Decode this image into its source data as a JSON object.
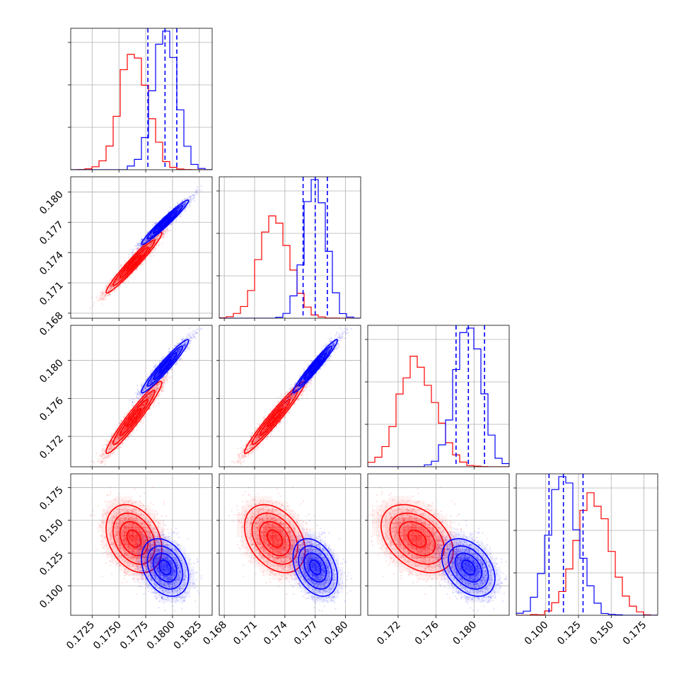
{
  "chart_data": {
    "type": "corner",
    "grid": true,
    "colors": {
      "sample_a": "#ff0000",
      "sample_b": "#0000ff",
      "quantiles": "#0000ff"
    },
    "parameters": [
      {
        "range": [
          0.1705,
          0.1837
        ],
        "ticks": [
          0.1725,
          0.175,
          0.1775,
          0.18,
          0.1825
        ],
        "tick_labels": [
          "0.1725",
          "0.1750",
          "0.1775",
          "0.1800",
          "0.1825"
        ]
      },
      {
        "range": [
          0.1675,
          0.1815
        ],
        "ticks": [
          0.168,
          0.171,
          0.174,
          0.177,
          0.18
        ],
        "tick_labels": [
          "0.168",
          "0.171",
          "0.174",
          "0.177",
          "0.180"
        ]
      },
      {
        "range": [
          0.1688,
          0.1837
        ],
        "ticks": [
          0.172,
          0.176,
          0.18
        ],
        "tick_labels": [
          "0.172",
          "0.176",
          "0.180"
        ]
      },
      {
        "range": [
          0.0775,
          0.1855
        ],
        "ticks": [
          0.1,
          0.125,
          0.15,
          0.175
        ],
        "tick_labels": [
          "0.100",
          "0.125",
          "0.150",
          "0.175"
        ]
      }
    ],
    "marginal_quantiles": [
      [
        0.1777,
        0.1793,
        0.1804
      ],
      [
        0.1758,
        0.177,
        0.1782
      ],
      [
        0.1781,
        0.1794,
        0.1811
      ],
      [
        0.1025,
        0.1135,
        0.1285
      ]
    ],
    "samples": [
      {
        "name": "",
        "color": "#ff0000",
        "mean": [
          0.1764,
          0.173,
          0.174,
          0.136
        ],
        "sd": [
          0.0013,
          0.0015,
          0.0019,
          0.013
        ],
        "corr": [
          [
            1.0,
            0.97,
            0.96,
            -0.3
          ],
          [
            0.97,
            1.0,
            0.97,
            -0.35
          ],
          [
            0.96,
            0.97,
            1.0,
            -0.38
          ],
          [
            -0.3,
            -0.35,
            -0.38,
            1.0
          ]
        ]
      },
      {
        "name": "",
        "color": "#0000ff",
        "mean": [
          0.1793,
          0.177,
          0.1794,
          0.114
        ],
        "sd": [
          0.0011,
          0.0011,
          0.0014,
          0.011
        ],
        "corr": [
          [
            1.0,
            0.97,
            0.96,
            -0.3
          ],
          [
            0.97,
            1.0,
            0.97,
            -0.35
          ],
          [
            0.96,
            0.97,
            1.0,
            -0.38
          ],
          [
            -0.3,
            -0.35,
            -0.38,
            1.0
          ]
        ]
      }
    ]
  }
}
